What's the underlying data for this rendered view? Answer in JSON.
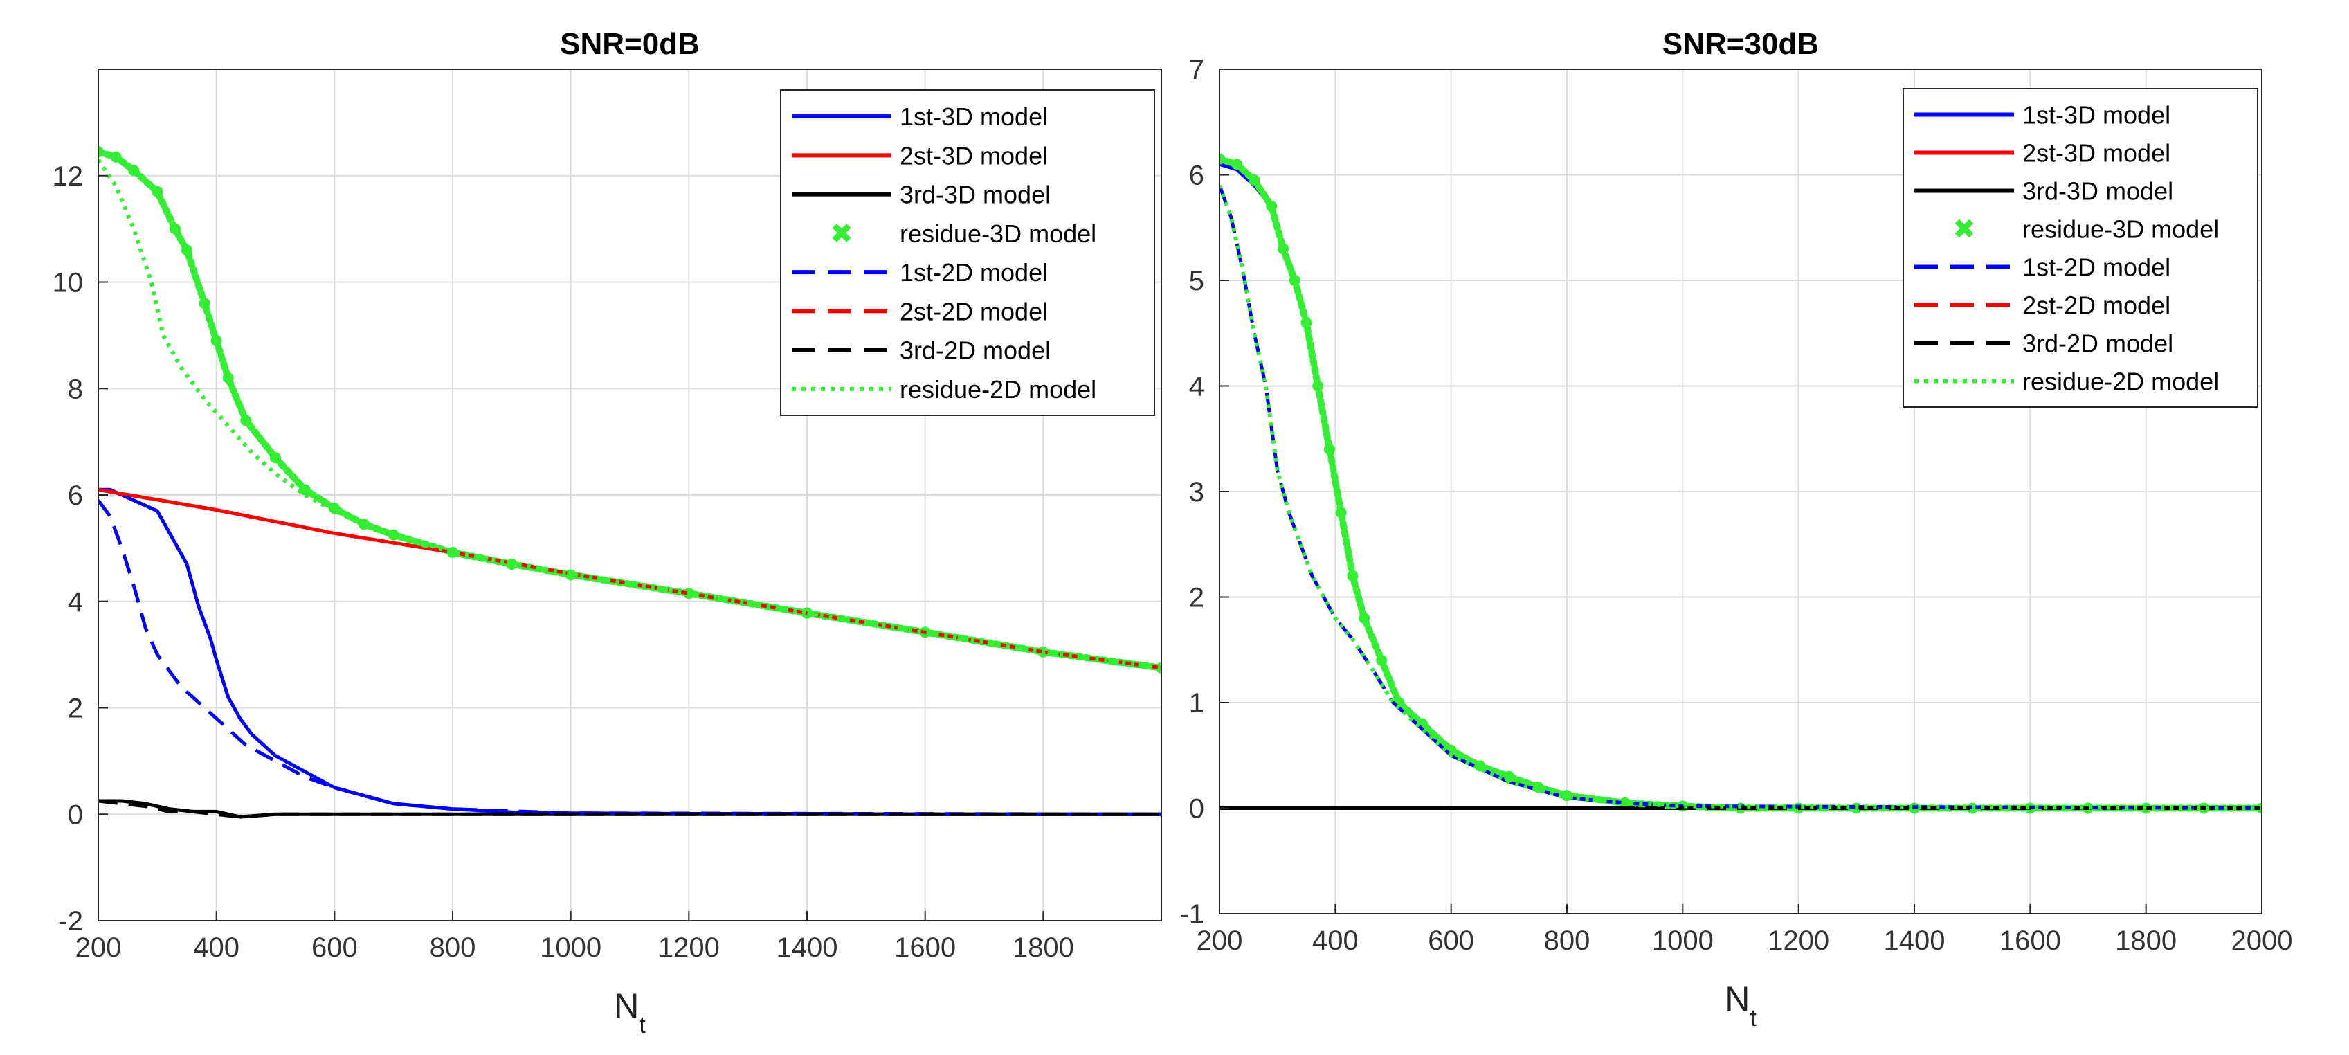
{
  "chart_data": [
    {
      "type": "line",
      "title": "SNR=0dB",
      "xlabel": "N",
      "xlabel_sub": "t",
      "ylabel": "",
      "xlim": [
        200,
        2000
      ],
      "ylim": [
        -2,
        14
      ],
      "xticks": [
        200,
        400,
        600,
        800,
        1000,
        1200,
        1400,
        1600,
        1800
      ],
      "yticks": [
        -2,
        0,
        2,
        4,
        6,
        8,
        10,
        12
      ],
      "grid": true,
      "legend": "top-right",
      "series": [
        {
          "name": "1st-3D model",
          "color": "#0000ff",
          "style": "solid",
          "x": [
            200,
            220,
            240,
            260,
            280,
            300,
            320,
            340,
            350,
            370,
            390,
            400,
            420,
            440,
            460,
            480,
            500,
            550,
            600,
            700,
            800,
            900,
            1000,
            1200,
            1400,
            1600,
            1800,
            2000
          ],
          "y": [
            6.1,
            6.1,
            6.0,
            5.9,
            5.8,
            5.7,
            5.3,
            4.9,
            4.7,
            3.9,
            3.3,
            2.9,
            2.2,
            1.8,
            1.5,
            1.3,
            1.1,
            0.8,
            0.5,
            0.2,
            0.1,
            0.04,
            0.02,
            0.01,
            0.01,
            0,
            0,
            0
          ]
        },
        {
          "name": "2st-3D model",
          "color": "#ff0000",
          "style": "solid",
          "x": [
            200,
            400,
            600,
            800,
            1000,
            1200,
            1400,
            1600,
            1800,
            2000
          ],
          "y": [
            6.1,
            5.72,
            5.28,
            4.92,
            4.52,
            4.15,
            3.78,
            3.42,
            3.05,
            2.75
          ]
        },
        {
          "name": "3rd-3D model",
          "color": "#000000",
          "style": "solid",
          "x": [
            200,
            240,
            280,
            320,
            360,
            400,
            440,
            500,
            600,
            700,
            800,
            1000,
            2000
          ],
          "y": [
            0.25,
            0.25,
            0.2,
            0.1,
            0.05,
            0.05,
            -0.05,
            0,
            0,
            0,
            0,
            0,
            0
          ]
        },
        {
          "name": "residue-3D model",
          "color": "#33ee33",
          "style": "marker",
          "x": [
            200,
            230,
            260,
            300,
            330,
            350,
            380,
            400,
            420,
            450,
            500,
            550,
            600,
            650,
            700,
            800,
            900,
            1000,
            1200,
            1400,
            1600,
            1800,
            2000
          ],
          "y": [
            12.45,
            12.35,
            12.1,
            11.7,
            11.0,
            10.6,
            9.6,
            8.9,
            8.2,
            7.4,
            6.7,
            6.1,
            5.75,
            5.45,
            5.25,
            4.92,
            4.7,
            4.5,
            4.15,
            3.78,
            3.42,
            3.05,
            2.75
          ]
        },
        {
          "name": "1st-2D model",
          "color": "#0000ff",
          "style": "dashed",
          "x": [
            200,
            220,
            240,
            260,
            280,
            300,
            320,
            340,
            360,
            400,
            450,
            500,
            550,
            600,
            700,
            800,
            1000,
            2000
          ],
          "y": [
            5.9,
            5.6,
            5.0,
            4.3,
            3.5,
            3.0,
            2.7,
            2.4,
            2.2,
            1.8,
            1.3,
            1.0,
            0.7,
            0.5,
            0.2,
            0.1,
            0.02,
            0
          ]
        },
        {
          "name": "2st-2D model",
          "color": "#ff0000",
          "style": "dashed",
          "x": [
            200,
            400,
            600,
            800,
            1000,
            1200,
            1400,
            1600,
            1800,
            2000
          ],
          "y": [
            6.1,
            5.72,
            5.28,
            4.92,
            4.52,
            4.15,
            3.78,
            3.42,
            3.05,
            2.75
          ]
        },
        {
          "name": "3rd-2D model",
          "color": "#000000",
          "style": "dashed",
          "x": [
            200,
            240,
            280,
            320,
            360,
            400,
            440,
            500,
            600,
            700,
            800,
            1000,
            2000
          ],
          "y": [
            0.25,
            0.2,
            0.15,
            0.05,
            0.05,
            0.0,
            -0.05,
            0,
            0,
            0,
            0,
            0,
            0
          ]
        },
        {
          "name": "residue-2D model",
          "color": "#33ee33",
          "style": "dotted",
          "x": [
            200,
            230,
            260,
            290,
            310,
            340,
            380,
            420,
            460,
            500,
            550,
            600,
            700,
            800,
            1000,
            1200,
            1400,
            1600,
            1800,
            2000
          ],
          "y": [
            12.3,
            11.8,
            11.0,
            10.0,
            9.0,
            8.4,
            7.8,
            7.3,
            6.8,
            6.4,
            6.0,
            5.7,
            5.25,
            4.92,
            4.52,
            4.15,
            3.78,
            3.42,
            3.05,
            2.75
          ]
        }
      ]
    },
    {
      "type": "line",
      "title": "SNR=30dB",
      "xlabel": "N",
      "xlabel_sub": "t",
      "ylabel": "",
      "xlim": [
        200,
        2000
      ],
      "ylim": [
        -1,
        7
      ],
      "xticks": [
        200,
        400,
        600,
        800,
        1000,
        1200,
        1400,
        1600,
        1800,
        2000
      ],
      "yticks": [
        -1,
        0,
        1,
        2,
        3,
        4,
        5,
        6,
        7
      ],
      "grid": true,
      "legend": "top-right",
      "series": [
        {
          "name": "1st-3D model",
          "color": "#0000ff",
          "style": "solid",
          "x": [
            200,
            230,
            260,
            290,
            310,
            330,
            350,
            370,
            390,
            410,
            430,
            450,
            480,
            510,
            550,
            600,
            700,
            800,
            900,
            1000,
            1200,
            2000
          ],
          "y": [
            6.1,
            6.05,
            5.9,
            5.7,
            5.3,
            5.0,
            4.6,
            4.0,
            3.4,
            2.8,
            2.2,
            1.8,
            1.4,
            1.0,
            0.75,
            0.5,
            0.25,
            0.1,
            0.05,
            0.02,
            0,
            0
          ]
        },
        {
          "name": "2st-3D model",
          "color": "#ff0000",
          "style": "solid",
          "x": [
            200,
            1000,
            2000
          ],
          "y": [
            0,
            0,
            0
          ]
        },
        {
          "name": "3rd-3D model",
          "color": "#000000",
          "style": "solid",
          "x": [
            200,
            1000,
            2000
          ],
          "y": [
            0,
            0,
            0
          ]
        },
        {
          "name": "residue-3D model",
          "color": "#33ee33",
          "style": "marker",
          "x": [
            200,
            230,
            260,
            290,
            310,
            330,
            350,
            370,
            390,
            410,
            430,
            450,
            480,
            510,
            550,
            600,
            650,
            700,
            750,
            800,
            900,
            1000,
            1100,
            1200,
            1300,
            1400,
            1500,
            1600,
            1700,
            1800,
            1900,
            2000
          ],
          "y": [
            6.15,
            6.1,
            5.95,
            5.7,
            5.3,
            5.0,
            4.6,
            4.0,
            3.4,
            2.8,
            2.2,
            1.8,
            1.4,
            1.0,
            0.8,
            0.55,
            0.4,
            0.3,
            0.2,
            0.12,
            0.05,
            0.02,
            0,
            0,
            0,
            0,
            0,
            0,
            0,
            0,
            0,
            0
          ]
        },
        {
          "name": "1st-2D model",
          "color": "#0000ff",
          "style": "dashed",
          "x": [
            200,
            220,
            240,
            260,
            280,
            290,
            300,
            320,
            340,
            360,
            380,
            400,
            430,
            460,
            500,
            550,
            600,
            700,
            800,
            900,
            1000,
            2000
          ],
          "y": [
            5.9,
            5.6,
            5.1,
            4.5,
            4.0,
            3.6,
            3.2,
            2.8,
            2.5,
            2.2,
            2.0,
            1.8,
            1.6,
            1.35,
            1.0,
            0.75,
            0.5,
            0.25,
            0.1,
            0.05,
            0.02,
            0
          ]
        },
        {
          "name": "2st-2D model",
          "color": "#ff0000",
          "style": "dashed",
          "x": [
            200,
            1000,
            2000
          ],
          "y": [
            0,
            0,
            0
          ]
        },
        {
          "name": "3rd-2D model",
          "color": "#000000",
          "style": "dashed",
          "x": [
            200,
            1000,
            2000
          ],
          "y": [
            0,
            0,
            0
          ]
        },
        {
          "name": "residue-2D model",
          "color": "#33ee33",
          "style": "dotted",
          "x": [
            200,
            220,
            240,
            260,
            280,
            290,
            300,
            320,
            340,
            360,
            380,
            400,
            430,
            460,
            500,
            550,
            600,
            700,
            800,
            900,
            1000,
            2000
          ],
          "y": [
            5.9,
            5.6,
            5.1,
            4.5,
            4.0,
            3.6,
            3.2,
            2.8,
            2.5,
            2.2,
            2.0,
            1.8,
            1.6,
            1.35,
            1.0,
            0.75,
            0.5,
            0.25,
            0.1,
            0.05,
            0.02,
            0
          ]
        }
      ]
    }
  ]
}
